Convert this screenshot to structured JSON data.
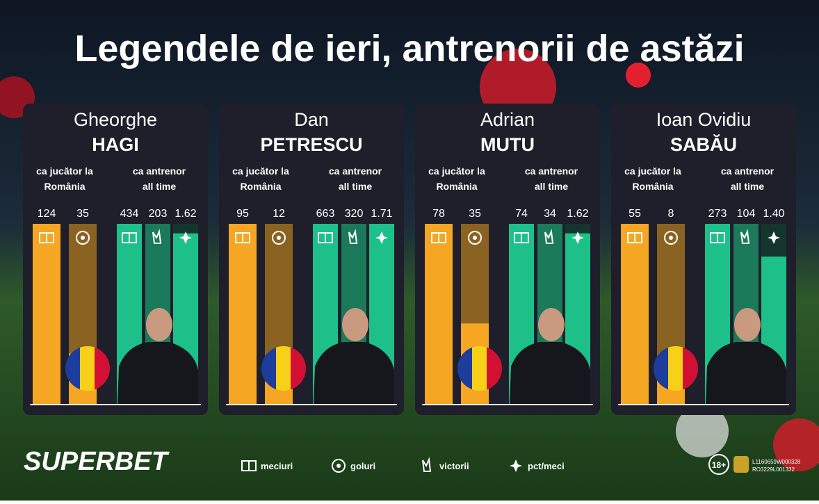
{
  "title": "Legendele de ieri, antrenorii de astăzi",
  "cards": [
    {
      "first": "Gheorghe",
      "last": "HAGI",
      "player_label": "ca jucător la România",
      "coach_label": "ca antrenor all time",
      "values": [
        124,
        35,
        434,
        203,
        1.62
      ]
    },
    {
      "first": "Dan",
      "last": "PETRESCU",
      "player_label": "ca jucător la România",
      "coach_label": "ca antrenor all time",
      "values": [
        95,
        12,
        663,
        320,
        1.71
      ]
    },
    {
      "first": "Adrian",
      "last": "MUTU",
      "player_label": "ca jucător la România",
      "coach_label": "ca antrenor all time",
      "values": [
        78,
        35,
        74,
        34,
        1.62
      ]
    },
    {
      "first": "Ioan Ovidiu",
      "last": "SABĂU",
      "player_label": "ca jucător la România",
      "coach_label": "ca antrenor all time",
      "values": [
        55,
        8,
        273,
        104,
        1.4
      ],
      "value_labels": [
        "55",
        "8",
        "273",
        "104",
        "1.40"
      ]
    }
  ],
  "legend": [
    "meciuri",
    "goluri",
    "victorii",
    "pct/meci"
  ],
  "footer": {
    "brand": "SUPERBET",
    "age": "18+",
    "license": [
      "L1160659W000328",
      "RO3229L001332"
    ]
  }
}
